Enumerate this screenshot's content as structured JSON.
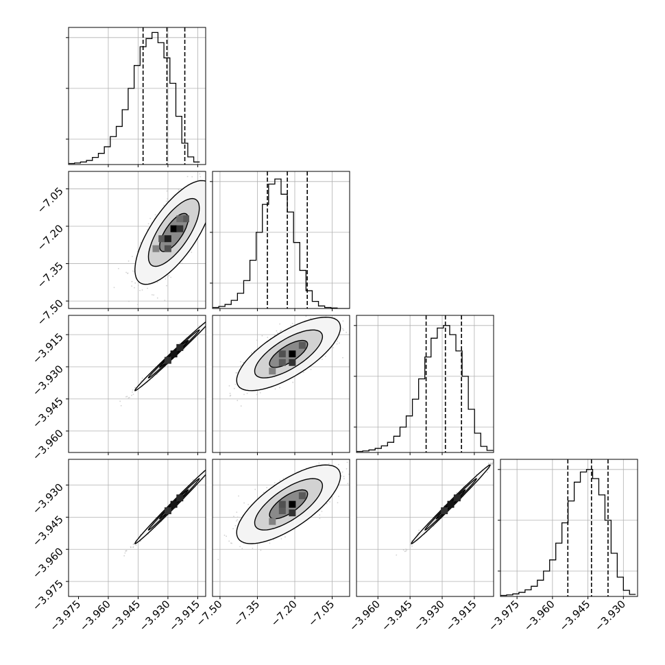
{
  "chart_data": {
    "type": "corner",
    "parameters": 4,
    "style": {
      "line_color": "#000000",
      "grid_color": "#b0b0b0",
      "scatter_color": "#bdbdbd",
      "background": "#ffffff"
    },
    "panels": [
      {
        "row": 0,
        "col": 0,
        "type": "histogram",
        "xlim": [
          -3.98,
          -3.911
        ],
        "ylim": [
          0,
          270
        ],
        "yticks": [
          50,
          150,
          250
        ],
        "bins_start": -3.98,
        "bins_width": 0.003,
        "counts": [
          2,
          3,
          5,
          8,
          14,
          22,
          35,
          55,
          75,
          108,
          150,
          195,
          232,
          248,
          260,
          240,
          210,
          160,
          95,
          42,
          15,
          5
        ],
        "quantiles": [
          -3.9425,
          -3.9305,
          -3.9215
        ],
        "xgrid": [
          -3.96,
          -3.945,
          -3.93,
          -3.915
        ]
      },
      {
        "row": 1,
        "col": 0,
        "type": "2d",
        "xlim": [
          -3.98,
          -3.911
        ],
        "ylim": [
          -7.53,
          -6.98
        ],
        "center": [
          -3.927,
          -7.225
        ],
        "sx": 0.008,
        "sy": 0.085,
        "rho": 0.72,
        "hist2d_bins": [
          [
            -3.933,
            -7.25,
            0.55
          ],
          [
            -3.93,
            -7.25,
            0.85
          ],
          [
            -3.927,
            -7.21,
            1.0
          ],
          [
            -3.924,
            -7.21,
            0.75
          ],
          [
            -3.93,
            -7.29,
            0.6
          ],
          [
            -3.921,
            -7.17,
            0.55
          ],
          [
            -3.936,
            -7.29,
            0.35
          ],
          [
            -3.924,
            -7.17,
            0.45
          ]
        ],
        "ygrid": [
          -7.05,
          -7.2,
          -7.35,
          -7.5
        ],
        "xgrid": [
          -3.96,
          -3.945,
          -3.93,
          -3.915
        ],
        "yticks": [
          -7.05,
          -7.2,
          -7.35,
          -7.5
        ],
        "yticklabels": [
          "−7.05",
          "−7.20",
          "−7.35",
          "−7.50"
        ]
      },
      {
        "row": 1,
        "col": 1,
        "type": "histogram",
        "xlim": [
          -7.53,
          -6.98
        ],
        "ylim": [
          0,
          270
        ],
        "yticks": [
          50,
          150,
          250
        ],
        "bins_start": -7.53,
        "bins_width": 0.025,
        "counts": [
          2,
          4,
          8,
          16,
          30,
          55,
          95,
          150,
          205,
          245,
          255,
          225,
          190,
          130,
          75,
          35,
          14,
          5,
          2,
          1,
          0,
          0
        ],
        "quantiles": [
          -7.31,
          -7.23,
          -7.15
        ],
        "xgrid": [
          -7.5,
          -7.35,
          -7.2,
          -7.05
        ]
      },
      {
        "row": 2,
        "col": 0,
        "type": "2d",
        "xlim": [
          -3.98,
          -3.911
        ],
        "ylim": [
          -3.97,
          -3.906
        ],
        "center": [
          -3.927,
          -3.924
        ],
        "sx": 0.008,
        "sy": 0.007,
        "rho": 0.995,
        "hist2d_bins": [
          [
            -3.927,
            -3.924,
            0.9
          ],
          [
            -3.93,
            -3.927,
            0.75
          ],
          [
            -3.924,
            -3.921,
            0.8
          ]
        ],
        "ygrid": [
          -3.915,
          -3.93,
          -3.945,
          -3.96
        ],
        "xgrid": [
          -3.96,
          -3.945,
          -3.93,
          -3.915
        ],
        "yticks": [
          -3.915,
          -3.93,
          -3.945,
          -3.96
        ],
        "yticklabels": [
          "−3.915",
          "−3.930",
          "−3.945",
          "−3.960"
        ]
      },
      {
        "row": 2,
        "col": 1,
        "type": "2d",
        "xlim": [
          -7.53,
          -6.98
        ],
        "ylim": [
          -3.97,
          -3.906
        ],
        "center": [
          -7.225,
          -3.924
        ],
        "sx": 0.085,
        "sy": 0.007,
        "rho": 0.72,
        "hist2d_bins": [
          [
            -7.25,
            -3.928,
            0.55
          ],
          [
            -7.21,
            -3.924,
            1.0
          ],
          [
            -7.21,
            -3.928,
            0.75
          ],
          [
            -7.17,
            -3.92,
            0.55
          ],
          [
            -7.25,
            -3.924,
            0.6
          ],
          [
            -7.29,
            -3.932,
            0.35
          ]
        ],
        "ygrid": [
          -3.915,
          -3.93,
          -3.945,
          -3.96
        ],
        "xgrid": [
          -7.5,
          -7.35,
          -7.2,
          -7.05
        ]
      },
      {
        "row": 2,
        "col": 2,
        "type": "histogram",
        "xlim": [
          -3.97,
          -3.906
        ],
        "ylim": [
          0,
          270
        ],
        "yticks": [
          50,
          150,
          250
        ],
        "bins_start": -3.97,
        "bins_width": 0.0029,
        "counts": [
          2,
          3,
          5,
          8,
          13,
          20,
          32,
          50,
          72,
          105,
          145,
          188,
          225,
          245,
          250,
          232,
          200,
          150,
          85,
          38,
          12,
          4
        ],
        "quantiles": [
          -3.9375,
          -3.9285,
          -3.921
        ],
        "xgrid": [
          -3.96,
          -3.945,
          -3.93,
          -3.915
        ]
      },
      {
        "row": 3,
        "col": 0,
        "type": "2d",
        "xlim": [
          -3.98,
          -3.911
        ],
        "ylim": [
          -3.982,
          -3.918
        ],
        "center": [
          -3.927,
          -3.939
        ],
        "sx": 0.008,
        "sy": 0.0075,
        "rho": 0.995,
        "hist2d_bins": [
          [
            -3.927,
            -3.939,
            0.9
          ],
          [
            -3.93,
            -3.942,
            0.75
          ],
          [
            -3.924,
            -3.936,
            0.8
          ]
        ],
        "ygrid": [
          -3.93,
          -3.945,
          -3.96,
          -3.975
        ],
        "xgrid": [
          -3.96,
          -3.945,
          -3.93,
          -3.915
        ],
        "yticks": [
          -3.93,
          -3.945,
          -3.96,
          -3.975
        ],
        "yticklabels": [
          "−3.930",
          "−3.945",
          "−3.960",
          "−3.975"
        ],
        "xticks": [
          -3.975,
          -3.96,
          -3.945,
          -3.93,
          -3.915
        ],
        "xticklabels": [
          "−3.975",
          "−3.960",
          "−3.945",
          "−3.930",
          "−3.915"
        ]
      },
      {
        "row": 3,
        "col": 1,
        "type": "2d",
        "xlim": [
          -7.53,
          -6.98
        ],
        "ylim": [
          -3.982,
          -3.918
        ],
        "center": [
          -7.225,
          -3.939
        ],
        "sx": 0.085,
        "sy": 0.0075,
        "rho": 0.72,
        "hist2d_bins": [
          [
            -7.25,
            -3.942,
            0.55
          ],
          [
            -7.21,
            -3.939,
            1.0
          ],
          [
            -7.21,
            -3.943,
            0.75
          ],
          [
            -7.17,
            -3.935,
            0.55
          ],
          [
            -7.25,
            -3.939,
            0.6
          ],
          [
            -7.29,
            -3.947,
            0.35
          ]
        ],
        "ygrid": [
          -3.93,
          -3.945,
          -3.96,
          -3.975
        ],
        "xgrid": [
          -7.5,
          -7.35,
          -7.2,
          -7.05
        ],
        "xticks": [
          -7.5,
          -7.35,
          -7.2,
          -7.05
        ],
        "xticklabels": [
          "−7.50",
          "−7.35",
          "−7.20",
          "−7.05"
        ]
      },
      {
        "row": 3,
        "col": 2,
        "type": "2d",
        "xlim": [
          -3.97,
          -3.906
        ],
        "ylim": [
          -3.982,
          -3.918
        ],
        "center": [
          -3.926,
          -3.939
        ],
        "sx": 0.0075,
        "sy": 0.0075,
        "rho": 0.995,
        "hist2d_bins": [
          [
            -3.926,
            -3.939,
            0.9
          ],
          [
            -3.929,
            -3.942,
            0.75
          ],
          [
            -3.923,
            -3.936,
            0.8
          ]
        ],
        "ygrid": [
          -3.93,
          -3.945,
          -3.96,
          -3.975
        ],
        "xgrid": [
          -3.96,
          -3.945,
          -3.93,
          -3.915
        ],
        "xticks": [
          -3.96,
          -3.945,
          -3.93,
          -3.915
        ],
        "xticklabels": [
          "−3.960",
          "−3.945",
          "−3.930",
          "−3.915"
        ]
      },
      {
        "row": 3,
        "col": 3,
        "type": "histogram",
        "xlim": [
          -3.982,
          -3.924
        ],
        "ylim": [
          0,
          270
        ],
        "yticks": [
          50,
          150,
          250
        ],
        "bins_start": -3.982,
        "bins_width": 0.0026,
        "counts": [
          2,
          3,
          5,
          8,
          13,
          20,
          32,
          50,
          72,
          105,
          145,
          188,
          225,
          245,
          250,
          232,
          200,
          150,
          85,
          38,
          12,
          4
        ],
        "quantiles": [
          -3.9535,
          -3.9435,
          -3.9365
        ],
        "xgrid": [
          -3.975,
          -3.96,
          -3.945,
          -3.93
        ],
        "xticks": [
          -3.975,
          -3.96,
          -3.945,
          -3.93
        ],
        "xticklabels": [
          "−3.975",
          "−3.960",
          "−3.945",
          "−3.930"
        ]
      }
    ]
  }
}
